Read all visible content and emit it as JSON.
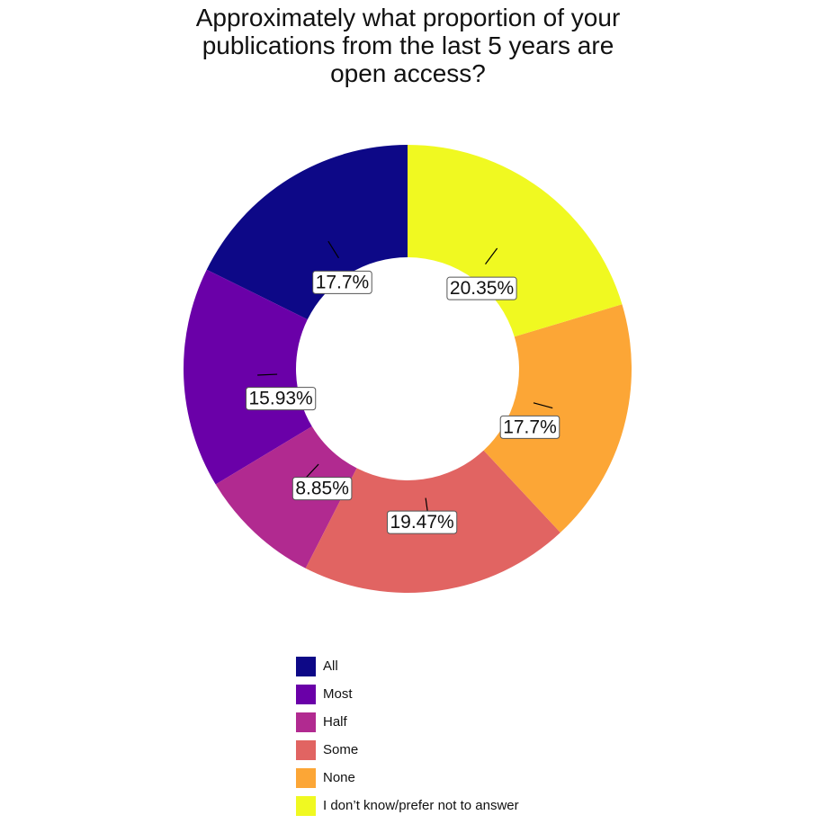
{
  "chart_data": {
    "type": "pie",
    "donut": true,
    "title_lines": [
      "Approximately what proportion of your",
      "publications from the last 5 years are",
      "open access?"
    ],
    "legend_position": "bottom",
    "slices": [
      {
        "name": "All",
        "value": 17.7,
        "label": "17.7%",
        "color": "#0D0887"
      },
      {
        "name": "Most",
        "value": 15.93,
        "label": "15.93%",
        "color": "#6A00A8"
      },
      {
        "name": "Half",
        "value": 8.85,
        "label": "8.85%",
        "color": "#B12A90"
      },
      {
        "name": "Some",
        "value": 19.47,
        "label": "19.47%",
        "color": "#E16462"
      },
      {
        "name": "None",
        "value": 17.7,
        "label": "17.7%",
        "color": "#FCA636"
      },
      {
        "name": "I don’t know/prefer not to answer",
        "value": 20.35,
        "label": "20.35%",
        "color": "#F0F921"
      }
    ]
  }
}
